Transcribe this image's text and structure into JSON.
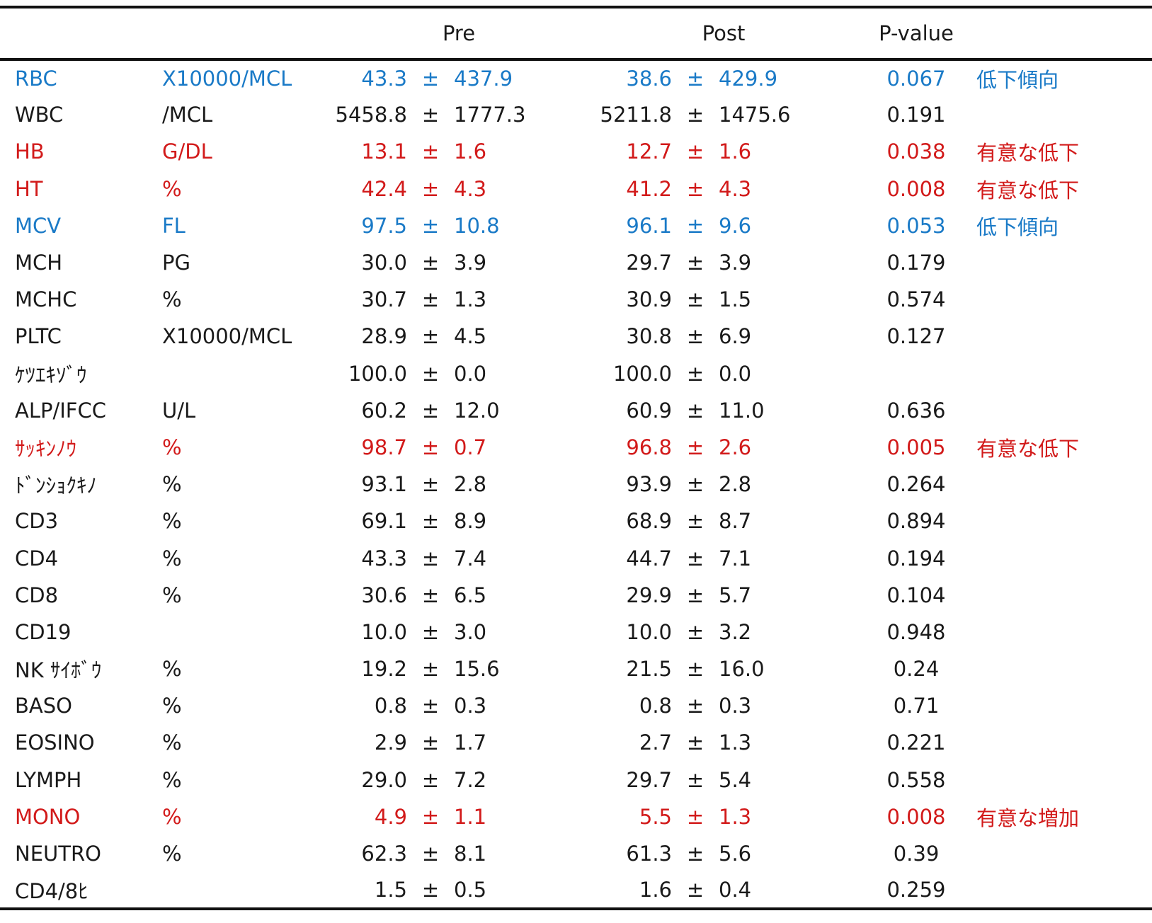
{
  "header": {
    "name": "",
    "unit": "",
    "pre": "Pre",
    "post": "Post",
    "pvalue": "P-value",
    "note": ""
  },
  "colors": {
    "blue": "#1a7ac7",
    "red": "#d21a1a",
    "default": "#1a1a1a"
  },
  "rows": [
    {
      "name": "RBC",
      "unit": "X10000/MCL",
      "pre_mean": "43.3",
      "pre_sd": "437.9",
      "post_mean": "38.6",
      "post_sd": "429.9",
      "p": "0.067",
      "note": "低下傾向",
      "color": "blue"
    },
    {
      "name": "WBC",
      "unit": "/MCL",
      "pre_mean": "5458.8",
      "pre_sd": "1777.3",
      "post_mean": "5211.8",
      "post_sd": "1475.6",
      "p": "0.191",
      "note": "",
      "color": "default"
    },
    {
      "name": "HB",
      "unit": "G/DL",
      "pre_mean": "13.1",
      "pre_sd": "1.6",
      "post_mean": "12.7",
      "post_sd": "1.6",
      "p": "0.038",
      "note": "有意な低下",
      "color": "red"
    },
    {
      "name": "HT",
      "unit": "%",
      "pre_mean": "42.4",
      "pre_sd": "4.3",
      "post_mean": "41.2",
      "post_sd": "4.3",
      "p": "0.008",
      "note": "有意な低下",
      "color": "red"
    },
    {
      "name": "MCV",
      "unit": "FL",
      "pre_mean": "97.5",
      "pre_sd": "10.8",
      "post_mean": "96.1",
      "post_sd": "9.6",
      "p": "0.053",
      "note": "低下傾向",
      "color": "blue"
    },
    {
      "name": "MCH",
      "unit": "PG",
      "pre_mean": "30.0",
      "pre_sd": "3.9",
      "post_mean": "29.7",
      "post_sd": "3.9",
      "p": "0.179",
      "note": "",
      "color": "default"
    },
    {
      "name": "MCHC",
      "unit": "%",
      "pre_mean": "30.7",
      "pre_sd": "1.3",
      "post_mean": "30.9",
      "post_sd": "1.5",
      "p": "0.574",
      "note": "",
      "color": "default"
    },
    {
      "name": "PLTC",
      "unit": "X10000/MCL",
      "pre_mean": "28.9",
      "pre_sd": "4.5",
      "post_mean": "30.8",
      "post_sd": "6.9",
      "p": "0.127",
      "note": "",
      "color": "default"
    },
    {
      "name": "ｹﾂｴｷｿﾞｳ",
      "unit": "",
      "pre_mean": "100.0",
      "pre_sd": "0.0",
      "post_mean": "100.0",
      "post_sd": "0.0",
      "p": "",
      "note": "",
      "color": "default"
    },
    {
      "name": "ALP/IFCC",
      "unit": "U/L",
      "pre_mean": "60.2",
      "pre_sd": "12.0",
      "post_mean": "60.9",
      "post_sd": "11.0",
      "p": "0.636",
      "note": "",
      "color": "default"
    },
    {
      "name": "ｻｯｷﾝﾉｳ",
      "unit": "%",
      "pre_mean": "98.7",
      "pre_sd": "0.7",
      "post_mean": "96.8",
      "post_sd": "2.6",
      "p": "0.005",
      "note": "有意な低下",
      "color": "red"
    },
    {
      "name": "ﾄﾞﾝｼｮｸｷﾉ",
      "unit": "%",
      "pre_mean": "93.1",
      "pre_sd": "2.8",
      "post_mean": "93.9",
      "post_sd": "2.8",
      "p": "0.264",
      "note": "",
      "color": "default"
    },
    {
      "name": "CD3",
      "unit": "%",
      "pre_mean": "69.1",
      "pre_sd": "8.9",
      "post_mean": "68.9",
      "post_sd": "8.7",
      "p": "0.894",
      "note": "",
      "color": "default"
    },
    {
      "name": "CD4",
      "unit": "%",
      "pre_mean": "43.3",
      "pre_sd": "7.4",
      "post_mean": "44.7",
      "post_sd": "7.1",
      "p": "0.194",
      "note": "",
      "color": "default"
    },
    {
      "name": "CD8",
      "unit": "%",
      "pre_mean": "30.6",
      "pre_sd": "6.5",
      "post_mean": "29.9",
      "post_sd": "5.7",
      "p": "0.104",
      "note": "",
      "color": "default"
    },
    {
      "name": "CD19",
      "unit": "",
      "pre_mean": "10.0",
      "pre_sd": "3.0",
      "post_mean": "10.0",
      "post_sd": "3.2",
      "p": "0.948",
      "note": "",
      "color": "default"
    },
    {
      "name": "NK ｻｲﾎﾞｳ",
      "unit": "%",
      "pre_mean": "19.2",
      "pre_sd": "15.6",
      "post_mean": "21.5",
      "post_sd": "16.0",
      "p": "0.24",
      "note": "",
      "color": "default"
    },
    {
      "name": "BASO",
      "unit": "%",
      "pre_mean": "0.8",
      "pre_sd": "0.3",
      "post_mean": "0.8",
      "post_sd": "0.3",
      "p": "0.71",
      "note": "",
      "color": "default"
    },
    {
      "name": "EOSINO",
      "unit": "%",
      "pre_mean": "2.9",
      "pre_sd": "1.7",
      "post_mean": "2.7",
      "post_sd": "1.3",
      "p": "0.221",
      "note": "",
      "color": "default"
    },
    {
      "name": "LYMPH",
      "unit": "%",
      "pre_mean": "29.0",
      "pre_sd": "7.2",
      "post_mean": "29.7",
      "post_sd": "5.4",
      "p": "0.558",
      "note": "",
      "color": "default"
    },
    {
      "name": "MONO",
      "unit": "%",
      "pre_mean": "4.9",
      "pre_sd": "1.1",
      "post_mean": "5.5",
      "post_sd": "1.3",
      "p": "0.008",
      "note": "有意な増加",
      "color": "red"
    },
    {
      "name": "NEUTRO",
      "unit": "%",
      "pre_mean": "62.3",
      "pre_sd": "8.1",
      "post_mean": "61.3",
      "post_sd": "5.6",
      "p": "0.39",
      "note": "",
      "color": "default"
    },
    {
      "name": "CD4/8ﾋ",
      "unit": "",
      "pre_mean": "1.5",
      "pre_sd": "0.5",
      "post_mean": "1.6",
      "post_sd": "0.4",
      "p": "0.259",
      "note": "",
      "color": "default"
    }
  ],
  "pm_symbol": "±"
}
